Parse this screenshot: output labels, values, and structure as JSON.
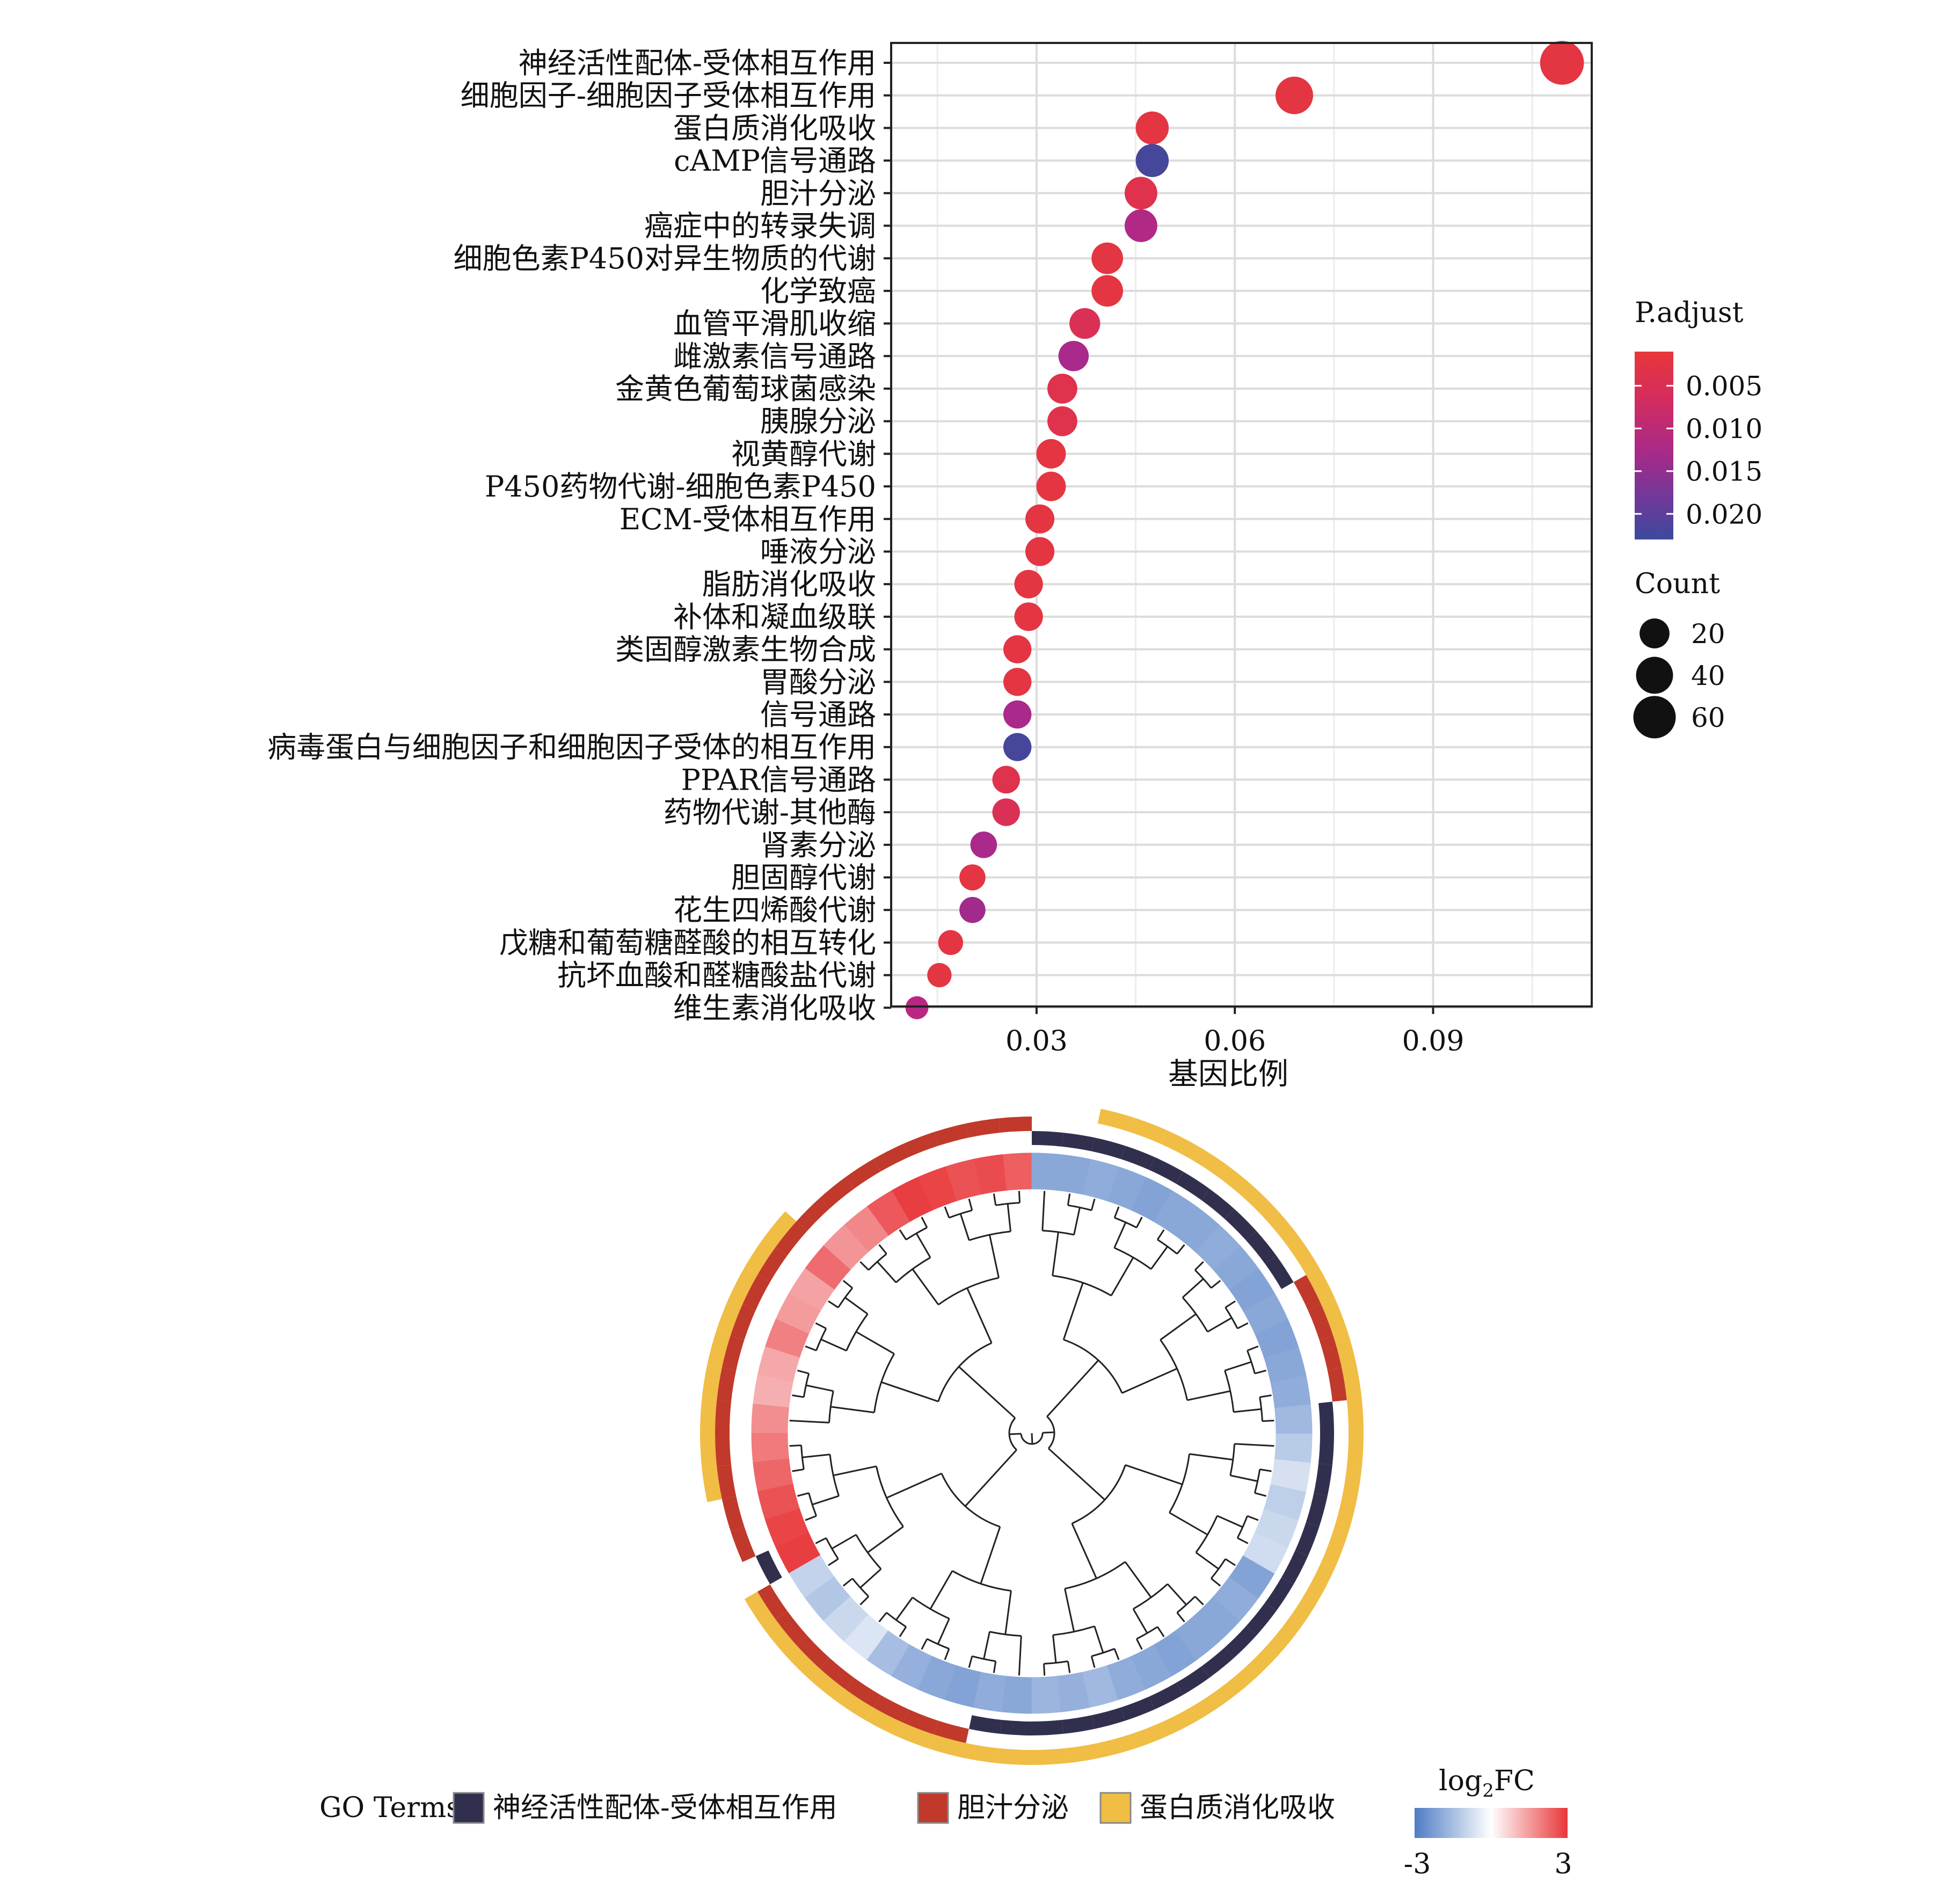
{
  "chart_data": [
    {
      "type": "scatter",
      "subtype": "dot-plot (KEGG enrichment)",
      "xlabel": "基因比例",
      "ylabel": "",
      "xlim": [
        0.008,
        0.114
      ],
      "x_ticks": [
        0.03,
        0.06,
        0.09
      ],
      "x_tick_labels": [
        "0.03",
        "0.06",
        "0.09"
      ],
      "grid": true,
      "terms": [
        {
          "label": "神经活性配体-受体相互作用",
          "gene_ratio": 0.1095,
          "p_adjust": 0.002,
          "count": 66
        },
        {
          "label": "细胞因子-细胞因子受体相互作用",
          "gene_ratio": 0.069,
          "p_adjust": 0.002,
          "count": 42
        },
        {
          "label": "蛋白质消化吸收",
          "gene_ratio": 0.0475,
          "p_adjust": 0.002,
          "count": 28
        },
        {
          "label": "cAMP信号通路",
          "gene_ratio": 0.0475,
          "p_adjust": 0.022,
          "count": 28
        },
        {
          "label": "胆汁分泌",
          "gene_ratio": 0.0458,
          "p_adjust": 0.003,
          "count": 27
        },
        {
          "label": "癌症中的转录失调",
          "gene_ratio": 0.0458,
          "p_adjust": 0.011,
          "count": 27
        },
        {
          "label": "细胞色素P450对异生物质的代谢",
          "gene_ratio": 0.0407,
          "p_adjust": 0.002,
          "count": 24
        },
        {
          "label": "化学致癌",
          "gene_ratio": 0.0407,
          "p_adjust": 0.002,
          "count": 24
        },
        {
          "label": "血管平滑肌收缩",
          "gene_ratio": 0.0373,
          "p_adjust": 0.004,
          "count": 22
        },
        {
          "label": "雌激素信号通路",
          "gene_ratio": 0.0356,
          "p_adjust": 0.012,
          "count": 21
        },
        {
          "label": "金黄色葡萄球菌感染",
          "gene_ratio": 0.0339,
          "p_adjust": 0.003,
          "count": 20
        },
        {
          "label": "胰腺分泌",
          "gene_ratio": 0.0339,
          "p_adjust": 0.003,
          "count": 20
        },
        {
          "label": "视黄醇代谢",
          "gene_ratio": 0.0322,
          "p_adjust": 0.002,
          "count": 19
        },
        {
          "label": "P450药物代谢-细胞色素P450",
          "gene_ratio": 0.0322,
          "p_adjust": 0.002,
          "count": 19
        },
        {
          "label": "ECM-受体相互作用",
          "gene_ratio": 0.0305,
          "p_adjust": 0.002,
          "count": 18
        },
        {
          "label": "唾液分泌",
          "gene_ratio": 0.0305,
          "p_adjust": 0.002,
          "count": 18
        },
        {
          "label": "脂肪消化吸收",
          "gene_ratio": 0.0288,
          "p_adjust": 0.002,
          "count": 17
        },
        {
          "label": "补体和凝血级联",
          "gene_ratio": 0.0288,
          "p_adjust": 0.002,
          "count": 17
        },
        {
          "label": "类固醇激素生物合成",
          "gene_ratio": 0.0271,
          "p_adjust": 0.002,
          "count": 16
        },
        {
          "label": "胃酸分泌",
          "gene_ratio": 0.0271,
          "p_adjust": 0.002,
          "count": 16
        },
        {
          "label": "信号通路",
          "gene_ratio": 0.0271,
          "p_adjust": 0.012,
          "count": 16
        },
        {
          "label": "病毒蛋白与细胞因子和细胞因子受体的相互作用",
          "gene_ratio": 0.0271,
          "p_adjust": 0.022,
          "count": 16
        },
        {
          "label": "PPAR信号通路",
          "gene_ratio": 0.0254,
          "p_adjust": 0.003,
          "count": 15
        },
        {
          "label": "药物代谢-其他酶",
          "gene_ratio": 0.0254,
          "p_adjust": 0.004,
          "count": 15
        },
        {
          "label": "肾素分泌",
          "gene_ratio": 0.022,
          "p_adjust": 0.012,
          "count": 13
        },
        {
          "label": "胆固醇代谢",
          "gene_ratio": 0.0203,
          "p_adjust": 0.002,
          "count": 12
        },
        {
          "label": "花生四烯酸代谢",
          "gene_ratio": 0.0203,
          "p_adjust": 0.013,
          "count": 12
        },
        {
          "label": "戊糖和葡萄糖醛酸的相互转化",
          "gene_ratio": 0.017,
          "p_adjust": 0.002,
          "count": 10
        },
        {
          "label": "抗坏血酸和醛糖酸盐代谢",
          "gene_ratio": 0.0153,
          "p_adjust": 0.002,
          "count": 9
        },
        {
          "label": "维生素消化吸收",
          "gene_ratio": 0.0119,
          "p_adjust": 0.01,
          "count": 7
        }
      ],
      "legend_padjust": {
        "title": "P.adjust",
        "ticks": [
          "0.005",
          "0.010",
          "0.015",
          "0.020"
        ],
        "tick_values": [
          0.005,
          0.01,
          0.015,
          0.02
        ],
        "range": [
          0.001,
          0.023
        ],
        "colors": [
          "#e8373a",
          "#c7257d",
          "#8a2f96",
          "#3b4a9c"
        ]
      },
      "legend_count": {
        "title": "Count",
        "labels": [
          "20",
          "40",
          "60"
        ],
        "values": [
          20,
          40,
          60
        ]
      }
    },
    {
      "type": "heatmap",
      "subtype": "circular dendrogram heatmap (GO chord)",
      "legend_terms_title": "GO Terms",
      "terms": [
        {
          "label": "神经活性配体-受体相互作用",
          "color": "#30304e"
        },
        {
          "label": "胆汁分泌",
          "color": "#c0392b"
        },
        {
          "label": "蛋白质消化吸收",
          "color": "#f0bd45"
        }
      ],
      "logfc_legend": {
        "title_base": "log",
        "title_sub": "2",
        "title_tail": "FC",
        "min_label": "-3",
        "max_label": "3",
        "min_value": -3,
        "max_value": 3,
        "colors": [
          "#4e7cc4",
          "#ffffff",
          "#e8373a"
        ]
      },
      "n_genes": 60,
      "logfc_values": [
        2.4,
        2.7,
        2.6,
        2.8,
        2.9,
        2.5,
        1.8,
        1.6,
        2.2,
        1.4,
        1.5,
        1.9,
        1.3,
        1.2,
        1.7,
        2.0,
        2.3,
        2.6,
        2.8,
        2.9,
        -1.0,
        -1.3,
        -0.9,
        -0.6,
        -1.5,
        -1.8,
        -2.0,
        -2.1,
        -1.9,
        -2.0,
        -1.7,
        -1.8,
        -1.6,
        -1.9,
        -2.0,
        -2.1,
        -2.0,
        -2.0,
        -1.9,
        -2.1,
        -0.8,
        -0.9,
        -1.1,
        -0.7,
        -1.2,
        -1.6,
        -1.9,
        -2.0,
        -2.1,
        -2.0,
        -2.1,
        -2.0,
        -1.9,
        -2.0,
        -2.0,
        -2.1,
        -2.0,
        -1.9,
        -2.0,
        -2.0
      ],
      "membership_neuroactive": [
        0,
        0,
        0,
        0,
        0,
        0,
        0,
        0,
        0,
        0,
        0,
        0,
        0,
        0,
        0,
        0,
        0,
        0,
        0,
        1,
        0,
        0,
        0,
        0,
        0,
        0,
        0,
        0,
        1,
        1,
        1,
        1,
        1,
        1,
        1,
        1,
        1,
        1,
        1,
        1,
        1,
        1,
        1,
        1,
        1,
        1,
        0,
        0,
        0,
        0,
        1,
        1,
        1,
        1,
        1,
        1,
        1,
        1,
        1,
        1
      ],
      "membership_bile": [
        1,
        1,
        1,
        1,
        1,
        1,
        1,
        1,
        1,
        1,
        1,
        1,
        1,
        1,
        1,
        1,
        1,
        1,
        1,
        0,
        1,
        1,
        1,
        1,
        1,
        1,
        1,
        1,
        0,
        0,
        0,
        0,
        0,
        0,
        0,
        0,
        0,
        0,
        0,
        0,
        0,
        0,
        0,
        0,
        0,
        0,
        1,
        1,
        1,
        1,
        0,
        0,
        0,
        0,
        0,
        0,
        0,
        0,
        0,
        0
      ],
      "membership_protein": [
        0,
        0,
        0,
        0,
        0,
        0,
        0,
        0,
        1,
        1,
        1,
        1,
        1,
        1,
        1,
        1,
        1,
        0,
        0,
        0,
        1,
        1,
        1,
        1,
        1,
        1,
        1,
        1,
        1,
        1,
        1,
        1,
        1,
        1,
        1,
        1,
        1,
        1,
        1,
        1,
        1,
        1,
        1,
        1,
        1,
        1,
        1,
        1,
        1,
        1,
        1,
        1,
        1,
        1,
        1,
        1,
        1,
        1,
        0,
        0
      ]
    }
  ]
}
